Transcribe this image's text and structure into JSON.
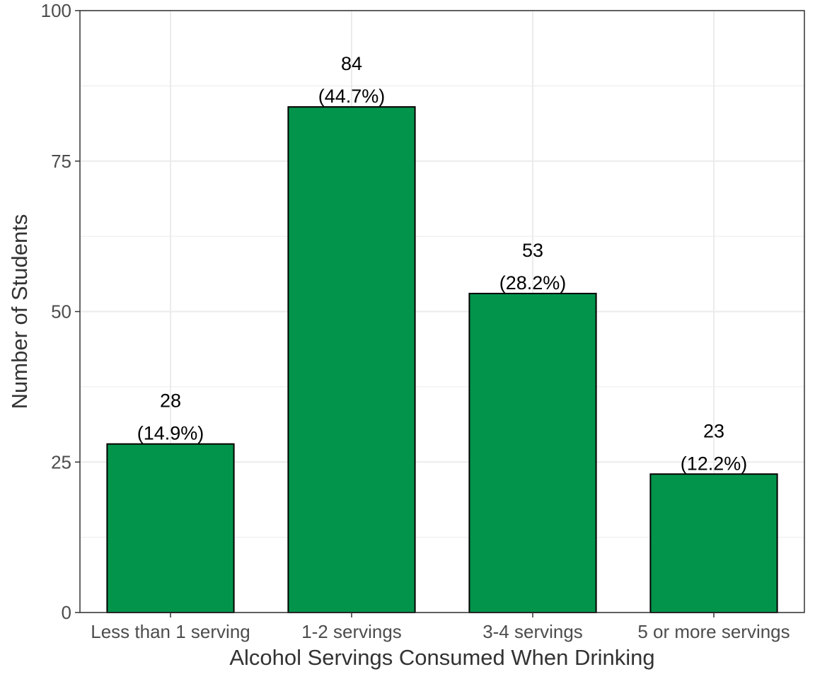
{
  "chart_data": {
    "type": "bar",
    "categories": [
      "Less than 1 serving",
      "1-2 servings",
      "3-4 servings",
      "5 or more servings"
    ],
    "values": [
      28,
      84,
      53,
      23
    ],
    "percent_labels": [
      "(14.9%)",
      "(44.7%)",
      "(28.2%)",
      "(12.2%)"
    ],
    "xlabel": "Alcohol Servings Consumed When Drinking",
    "ylabel": "Number of Students",
    "ylim": [
      0,
      100
    ],
    "yticks": [
      0,
      25,
      50,
      75,
      100
    ],
    "grid": true,
    "legend": "none",
    "colors": {
      "bar_fill": "#03944C",
      "bar_stroke": "#000000",
      "grid": "#ebebeb",
      "panel_border": "#333333"
    }
  }
}
